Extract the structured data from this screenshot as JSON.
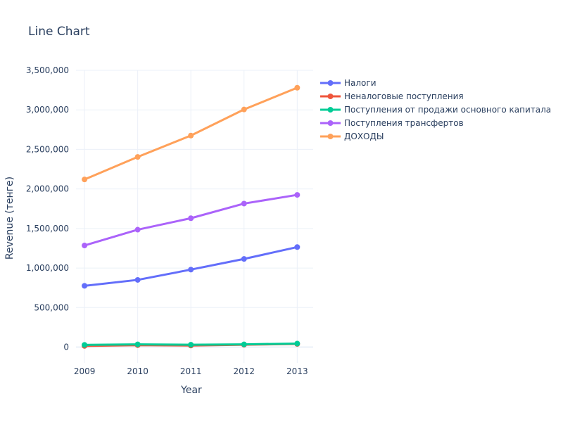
{
  "chart_data": {
    "type": "line",
    "title": "Line Chart",
    "xlabel": "Year",
    "ylabel": "Revenue (тенге)",
    "x": [
      2009,
      2010,
      2011,
      2012,
      2013
    ],
    "x_ticks": [
      "2009",
      "2010",
      "2011",
      "2012",
      "2013"
    ],
    "ylim": [
      -200000,
      3500000
    ],
    "y_ticks": [
      0,
      500000,
      1000000,
      1500000,
      2000000,
      2500000,
      3000000,
      3500000
    ],
    "y_tick_labels": [
      "0",
      "500,000",
      "1,000,000",
      "1,500,000",
      "2,000,000",
      "2,500,000",
      "3,000,000",
      "3,500,000"
    ],
    "grid": true,
    "legend_position": "top-right",
    "series": [
      {
        "name": "Налоги",
        "color": "#636efa",
        "values": [
          775000,
          850000,
          980000,
          1115000,
          1265000
        ]
      },
      {
        "name": "Неналоговые поступления",
        "color": "#ef553b",
        "values": [
          15000,
          25000,
          20000,
          30000,
          40000
        ]
      },
      {
        "name": "Поступления от продажи основного капитала",
        "color": "#00cc96",
        "values": [
          28000,
          35000,
          30000,
          35000,
          45000
        ]
      },
      {
        "name": "Поступления трансфертов",
        "color": "#ab63fa",
        "values": [
          1285000,
          1485000,
          1630000,
          1815000,
          1925000
        ]
      },
      {
        "name": "ДОХОДЫ",
        "color": "#ffa15a",
        "values": [
          2120000,
          2405000,
          2675000,
          3005000,
          3280000
        ]
      }
    ]
  }
}
